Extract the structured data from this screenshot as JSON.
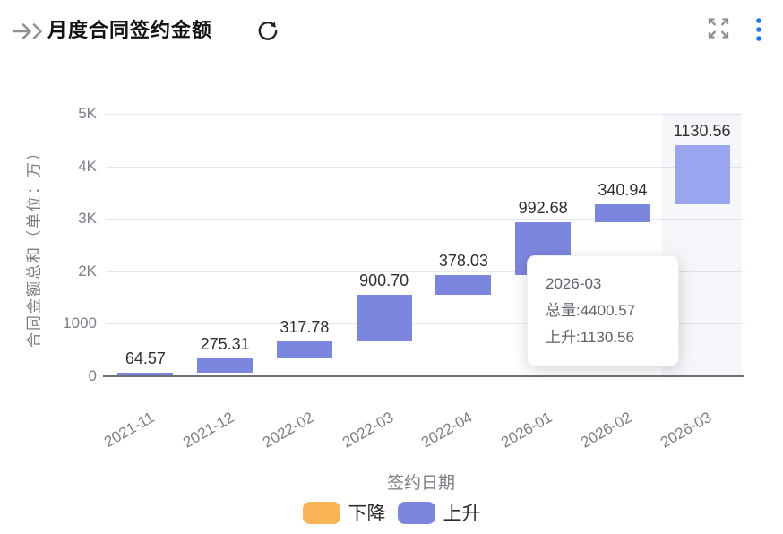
{
  "header": {
    "title": "月度合同签约金额",
    "icons": {
      "collapse": "double-arrow-right",
      "refresh": "refresh-circular-arrow",
      "expand": "fullscreen-four-arrows",
      "more": "kebab-menu-dots"
    },
    "more_icon_color": "#1677ff"
  },
  "chart_data": {
    "type": "bar",
    "subtype": "waterfall",
    "title": "月度合同签约金额",
    "categories": [
      "2021-11",
      "2021-12",
      "2022-02",
      "2022-03",
      "2022-04",
      "2026-01",
      "2026-02",
      "2026-03"
    ],
    "values": [
      64.57,
      275.31,
      317.78,
      900.7,
      378.03,
      992.68,
      340.94,
      1130.56
    ],
    "value_labels": [
      "64.57",
      "275.31",
      "317.78",
      "900.70",
      "378.03",
      "992.68",
      "340.94",
      "1130.56"
    ],
    "cumulative_total": 4400.57,
    "xlabel": "签约日期",
    "ylabel": "合同金额总和（单位：万）",
    "ylim": [
      0,
      5000
    ],
    "yticks": [
      {
        "value": 0,
        "label": "0"
      },
      {
        "value": 1000,
        "label": "1000"
      },
      {
        "value": 2000,
        "label": "2K"
      },
      {
        "value": 3000,
        "label": "3K"
      },
      {
        "value": 4000,
        "label": "4K"
      },
      {
        "value": 5000,
        "label": "5K"
      }
    ],
    "grid": true,
    "legend_position": "bottom",
    "legend": [
      {
        "label": "下降",
        "color": "#f9b456",
        "series": "fall"
      },
      {
        "label": "上升",
        "color": "#7b86de",
        "series": "rise"
      }
    ],
    "highlighted_category_index": 7,
    "colors": {
      "rise": "#7b86de",
      "rise_hover": "#9aa5f0",
      "fall": "#f9b456",
      "gridline": "#e5e9f2",
      "axis_line": "#6e7079",
      "tick_label": "#7b7e87",
      "value_label": "#2f2f2f"
    }
  },
  "tooltip": {
    "title": "2026-03",
    "lines": [
      "总量:4400.57",
      "上升:1130.56"
    ]
  }
}
